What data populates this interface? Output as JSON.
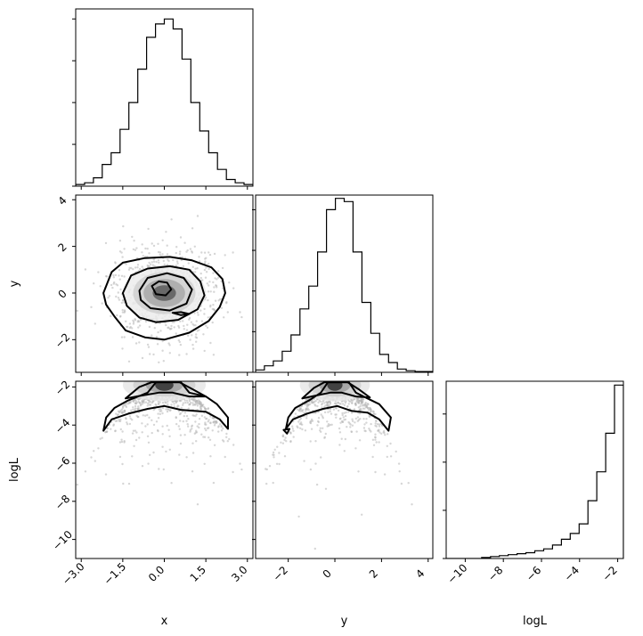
{
  "chart_data": {
    "type": "corner",
    "variables": [
      {
        "name": "x",
        "label": "x",
        "range": [
          -3.2,
          3.2
        ],
        "ticks": [
          -3.0,
          -1.5,
          0.0,
          1.5,
          3.0
        ],
        "tick_labels": [
          "−3.0",
          "−1.5",
          "0.0",
          "1.5",
          "3.0"
        ]
      },
      {
        "name": "y",
        "label": "y",
        "range": [
          -3.4,
          4.2
        ],
        "ticks": [
          -2,
          0,
          2,
          4
        ],
        "tick_labels": [
          "−2",
          "0",
          "2",
          "4"
        ]
      },
      {
        "name": "logL",
        "label": "logL",
        "range": [
          -11.0,
          -1.7
        ],
        "ticks": [
          -10,
          -8,
          -6,
          -4,
          -2
        ],
        "tick_labels": [
          "−10",
          "−8",
          "−6",
          "−4",
          "−2"
        ]
      }
    ],
    "histograms": [
      {
        "variable": "x",
        "type": "step",
        "edges": [
          -3.2,
          -2.88,
          -2.56,
          -2.24,
          -1.92,
          -1.6,
          -1.28,
          -0.96,
          -0.64,
          -0.32,
          0.0,
          0.32,
          0.64,
          0.96,
          1.28,
          1.6,
          1.92,
          2.24,
          2.56,
          2.88,
          3.2
        ],
        "counts": [
          2,
          4,
          10,
          26,
          40,
          68,
          100,
          140,
          178,
          194,
          200,
          188,
          152,
          100,
          66,
          40,
          20,
          8,
          4,
          2
        ],
        "ylim": [
          0,
          212
        ]
      },
      {
        "variable": "y",
        "type": "step",
        "edges": [
          -3.4,
          -3.02,
          -2.64,
          -2.26,
          -1.88,
          -1.5,
          -1.12,
          -0.74,
          -0.36,
          0.02,
          0.4,
          0.78,
          1.16,
          1.54,
          1.92,
          2.3,
          2.68,
          3.06,
          3.44,
          3.82,
          4.2
        ],
        "counts": [
          3,
          8,
          14,
          26,
          46,
          78,
          106,
          148,
          200,
          214,
          210,
          148,
          86,
          48,
          22,
          12,
          4,
          2,
          1,
          1
        ],
        "ylim": [
          0,
          218
        ]
      },
      {
        "variable": "logL",
        "type": "step",
        "edges": [
          -11.0,
          -10.535,
          -10.07,
          -9.605,
          -9.14,
          -8.675,
          -8.21,
          -7.745,
          -7.28,
          -6.815,
          -6.35,
          -5.885,
          -5.42,
          -4.955,
          -4.49,
          -4.025,
          -3.56,
          -3.095,
          -2.63,
          -2.165,
          -1.7
        ],
        "counts": [
          0,
          0,
          0,
          0,
          1,
          2,
          3,
          4,
          5,
          6,
          8,
          10,
          14,
          20,
          26,
          36,
          60,
          90,
          130,
          180
        ],
        "ylim": [
          0,
          184
        ]
      }
    ],
    "pairs": [
      {
        "x": "x",
        "y": "y",
        "style": "scatter+density+contour",
        "contours": [
          [
            [
              -2.2,
              0.0
            ],
            [
              -1.9,
              0.9
            ],
            [
              -1.5,
              1.3
            ],
            [
              -0.7,
              1.5
            ],
            [
              0.2,
              1.55
            ],
            [
              1.0,
              1.4
            ],
            [
              1.7,
              1.1
            ],
            [
              2.1,
              0.6
            ],
            [
              2.2,
              0.0
            ],
            [
              2.0,
              -0.6
            ],
            [
              1.6,
              -1.2
            ],
            [
              0.9,
              -1.7
            ],
            [
              0.0,
              -2.0
            ],
            [
              -0.7,
              -1.9
            ],
            [
              -1.4,
              -1.6
            ],
            [
              -1.8,
              -1.0
            ],
            [
              -2.1,
              -0.5
            ]
          ],
          [
            [
              -1.5,
              0.0
            ],
            [
              -1.2,
              0.75
            ],
            [
              -0.6,
              1.05
            ],
            [
              0.2,
              1.15
            ],
            [
              0.9,
              1.0
            ],
            [
              1.3,
              0.5
            ],
            [
              1.45,
              -0.1
            ],
            [
              1.2,
              -0.7
            ],
            [
              0.5,
              -1.15
            ],
            [
              -0.3,
              -1.25
            ],
            [
              -0.9,
              -1.05
            ],
            [
              -1.35,
              -0.55
            ]
          ],
          [
            [
              -0.9,
              0.1
            ],
            [
              -0.6,
              0.65
            ],
            [
              0.1,
              0.85
            ],
            [
              0.7,
              0.65
            ],
            [
              1.0,
              0.15
            ],
            [
              0.8,
              -0.45
            ],
            [
              0.2,
              -0.75
            ],
            [
              -0.5,
              -0.65
            ],
            [
              -0.85,
              -0.3
            ]
          ],
          [
            [
              -0.45,
              0.3
            ],
            [
              -0.2,
              0.5
            ],
            [
              0.1,
              0.45
            ],
            [
              0.25,
              0.15
            ],
            [
              0.05,
              -0.1
            ],
            [
              -0.3,
              -0.05
            ]
          ],
          [
            [
              0.3,
              -0.85
            ],
            [
              0.6,
              -0.95
            ],
            [
              0.9,
              -0.9
            ],
            [
              0.6,
              -0.82
            ]
          ]
        ]
      },
      {
        "x": "x",
        "y": "logL",
        "style": "scatter+density+contour",
        "contours": [
          [
            [
              -2.2,
              -4.3
            ],
            [
              -2.1,
              -3.6
            ],
            [
              -1.8,
              -3.1
            ],
            [
              -1.3,
              -2.7
            ],
            [
              -0.6,
              -2.3
            ],
            [
              -0.3,
              -1.75
            ],
            [
              0.6,
              -1.75
            ],
            [
              0.9,
              -2.3
            ],
            [
              1.5,
              -2.5
            ],
            [
              1.9,
              -2.9
            ],
            [
              2.3,
              -3.6
            ],
            [
              2.3,
              -4.2
            ],
            [
              2.0,
              -3.7
            ],
            [
              1.5,
              -3.3
            ],
            [
              0.6,
              -3.2
            ],
            [
              0.0,
              -3.0
            ],
            [
              -0.6,
              -3.15
            ],
            [
              -1.3,
              -3.4
            ],
            [
              -1.9,
              -3.7
            ]
          ],
          [
            [
              -1.4,
              -2.6
            ],
            [
              -0.9,
              -2.0
            ],
            [
              -0.45,
              -1.75
            ],
            [
              0.55,
              -1.75
            ],
            [
              1.0,
              -2.1
            ],
            [
              1.5,
              -2.5
            ],
            [
              0.9,
              -2.5
            ],
            [
              0.3,
              -2.3
            ],
            [
              -0.2,
              -2.3
            ],
            [
              -0.8,
              -2.45
            ]
          ]
        ]
      },
      {
        "x": "y",
        "y": "logL",
        "style": "scatter+density+contour",
        "contours": [
          [
            [
              -2.1,
              -4.2
            ],
            [
              -2.0,
              -3.6
            ],
            [
              -1.7,
              -3.1
            ],
            [
              -1.1,
              -2.7
            ],
            [
              -0.6,
              -2.3
            ],
            [
              -0.3,
              -1.75
            ],
            [
              0.6,
              -1.75
            ],
            [
              0.9,
              -2.3
            ],
            [
              1.4,
              -2.6
            ],
            [
              1.9,
              -2.9
            ],
            [
              2.4,
              -3.6
            ],
            [
              2.3,
              -4.3
            ],
            [
              1.9,
              -3.7
            ],
            [
              1.4,
              -3.35
            ],
            [
              0.7,
              -3.25
            ],
            [
              0.1,
              -3.0
            ],
            [
              -0.5,
              -3.15
            ],
            [
              -1.2,
              -3.4
            ],
            [
              -1.8,
              -3.7
            ]
          ],
          [
            [
              -1.4,
              -2.6
            ],
            [
              -0.9,
              -2.05
            ],
            [
              -0.45,
              -1.75
            ],
            [
              0.55,
              -1.75
            ],
            [
              1.0,
              -2.1
            ],
            [
              1.5,
              -2.55
            ],
            [
              0.9,
              -2.5
            ],
            [
              0.3,
              -2.3
            ],
            [
              -0.2,
              -2.3
            ],
            [
              -0.8,
              -2.45
            ]
          ],
          [
            [
              -2.2,
              -4.25
            ],
            [
              -2.05,
              -4.45
            ],
            [
              -1.95,
              -4.2
            ]
          ]
        ]
      }
    ]
  }
}
